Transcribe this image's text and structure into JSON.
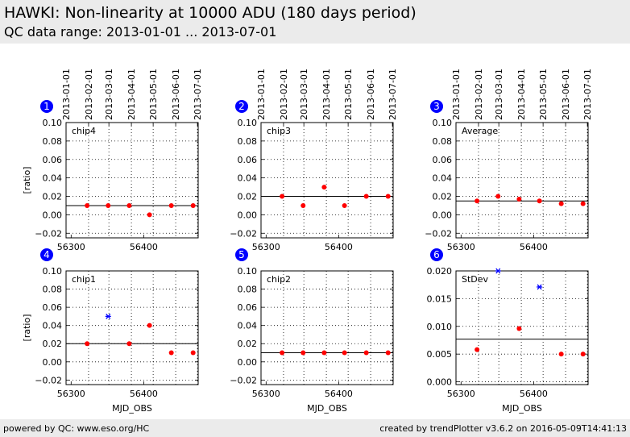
{
  "header": {
    "title": "HAWKI: Non-linearity at 10000 ADU (180 days period)",
    "subtitle": "QC data range: 2013-01-01 ... 2013-07-01"
  },
  "footer": {
    "left": "powered by QC: www.eso.org/HC",
    "right": "created by trendPlotter v3.6.2 on 2016-05-09T14:41:13"
  },
  "colors": {
    "point": "#ff0000",
    "outlier": "#0000ff",
    "badge": "#0000ff",
    "header_bg": "#ebebeb"
  },
  "chart_data": [
    {
      "type": "scatter",
      "panel_number": "1",
      "label": "chip4",
      "ylabel": "[ratio]",
      "xlabel": "",
      "xlim": [
        56293,
        56475
      ],
      "ylim": [
        -0.025,
        0.1
      ],
      "yticks": [
        -0.02,
        0.0,
        0.02,
        0.04,
        0.06,
        0.08,
        0.1
      ],
      "ytick_labels": [
        "−0.02",
        "0.00",
        "0.02",
        "0.04",
        "0.06",
        "0.08",
        "0.10"
      ],
      "xticks": [
        56300,
        56400
      ],
      "xtick_labels": [
        "56300",
        "56400"
      ],
      "date_ticks": [
        "2013-01-01",
        "2013-02-01",
        "2013-03-01",
        "2013-04-01",
        "2013-05-01",
        "2013-06-01",
        "2013-07-01"
      ],
      "date_tick_mjd": [
        56293,
        56324,
        56352,
        56383,
        56413,
        56444,
        56474
      ],
      "refline": 0.01,
      "points": [
        {
          "x": 56322,
          "y": 0.01
        },
        {
          "x": 56351,
          "y": 0.01
        },
        {
          "x": 56380,
          "y": 0.01
        },
        {
          "x": 56408,
          "y": 0.0
        },
        {
          "x": 56438,
          "y": 0.01
        },
        {
          "x": 56468,
          "y": 0.01
        }
      ],
      "outliers": []
    },
    {
      "type": "scatter",
      "panel_number": "2",
      "label": "chip3",
      "ylabel": "",
      "xlabel": "",
      "xlim": [
        56293,
        56475
      ],
      "ylim": [
        -0.025,
        0.1
      ],
      "yticks": [
        -0.02,
        0.0,
        0.02,
        0.04,
        0.06,
        0.08,
        0.1
      ],
      "ytick_labels": [
        "−0.02",
        "0.00",
        "0.02",
        "0.04",
        "0.06",
        "0.08",
        "0.10"
      ],
      "xticks": [
        56300,
        56400
      ],
      "xtick_labels": [
        "56300",
        "56400"
      ],
      "date_ticks": [
        "2013-01-01",
        "2013-02-01",
        "2013-03-01",
        "2013-04-01",
        "2013-05-01",
        "2013-06-01",
        "2013-07-01"
      ],
      "date_tick_mjd": [
        56293,
        56324,
        56352,
        56383,
        56413,
        56444,
        56474
      ],
      "refline": 0.02,
      "points": [
        {
          "x": 56322,
          "y": 0.02
        },
        {
          "x": 56351,
          "y": 0.01
        },
        {
          "x": 56380,
          "y": 0.03
        },
        {
          "x": 56408,
          "y": 0.01
        },
        {
          "x": 56438,
          "y": 0.02
        },
        {
          "x": 56468,
          "y": 0.02
        }
      ],
      "outliers": []
    },
    {
      "type": "scatter",
      "panel_number": "3",
      "label": "Average",
      "ylabel": "",
      "xlabel": "",
      "xlim": [
        56293,
        56475
      ],
      "ylim": [
        -0.025,
        0.1
      ],
      "yticks": [
        -0.02,
        0.0,
        0.02,
        0.04,
        0.06,
        0.08,
        0.1
      ],
      "ytick_labels": [
        "−0.02",
        "0.00",
        "0.02",
        "0.04",
        "0.06",
        "0.08",
        "0.10"
      ],
      "xticks": [
        56300,
        56400
      ],
      "xtick_labels": [
        "56300",
        "56400"
      ],
      "date_ticks": [
        "2013-01-01",
        "2013-02-01",
        "2013-03-01",
        "2013-04-01",
        "2013-05-01",
        "2013-06-01",
        "2013-07-01"
      ],
      "date_tick_mjd": [
        56293,
        56324,
        56352,
        56383,
        56413,
        56444,
        56474
      ],
      "refline": 0.015,
      "points": [
        {
          "x": 56322,
          "y": 0.015
        },
        {
          "x": 56351,
          "y": 0.02
        },
        {
          "x": 56380,
          "y": 0.017
        },
        {
          "x": 56408,
          "y": 0.015
        },
        {
          "x": 56438,
          "y": 0.012
        },
        {
          "x": 56468,
          "y": 0.012
        }
      ],
      "outliers": []
    },
    {
      "type": "scatter",
      "panel_number": "4",
      "label": "chip1",
      "ylabel": "[ratio]",
      "xlabel": "MJD_OBS",
      "xlim": [
        56293,
        56475
      ],
      "ylim": [
        -0.025,
        0.1
      ],
      "yticks": [
        -0.02,
        0.0,
        0.02,
        0.04,
        0.06,
        0.08,
        0.1
      ],
      "ytick_labels": [
        "−0.02",
        "0.00",
        "0.02",
        "0.04",
        "0.06",
        "0.08",
        "0.10"
      ],
      "xticks": [
        56300,
        56400
      ],
      "xtick_labels": [
        "56300",
        "56400"
      ],
      "date_ticks": [],
      "date_tick_mjd": [],
      "refline": 0.02,
      "points": [
        {
          "x": 56322,
          "y": 0.02
        },
        {
          "x": 56380,
          "y": 0.02
        },
        {
          "x": 56408,
          "y": 0.04
        },
        {
          "x": 56438,
          "y": 0.01
        },
        {
          "x": 56468,
          "y": 0.01
        }
      ],
      "outliers": [
        {
          "x": 56351,
          "y": 0.05
        }
      ]
    },
    {
      "type": "scatter",
      "panel_number": "5",
      "label": "chip2",
      "ylabel": "",
      "xlabel": "MJD_OBS",
      "xlim": [
        56293,
        56475
      ],
      "ylim": [
        -0.025,
        0.1
      ],
      "yticks": [
        -0.02,
        0.0,
        0.02,
        0.04,
        0.06,
        0.08,
        0.1
      ],
      "ytick_labels": [
        "−0.02",
        "0.00",
        "0.02",
        "0.04",
        "0.06",
        "0.08",
        "0.10"
      ],
      "xticks": [
        56300,
        56400
      ],
      "xtick_labels": [
        "56300",
        "56400"
      ],
      "date_ticks": [],
      "date_tick_mjd": [],
      "refline": 0.01,
      "points": [
        {
          "x": 56322,
          "y": 0.01
        },
        {
          "x": 56351,
          "y": 0.01
        },
        {
          "x": 56380,
          "y": 0.01
        },
        {
          "x": 56408,
          "y": 0.01
        },
        {
          "x": 56438,
          "y": 0.01
        },
        {
          "x": 56468,
          "y": 0.01
        }
      ],
      "outliers": []
    },
    {
      "type": "scatter",
      "panel_number": "6",
      "label": "StDev",
      "ylabel": "",
      "xlabel": "MJD_OBS",
      "xlim": [
        56293,
        56475
      ],
      "ylim": [
        -0.0005,
        0.02
      ],
      "yticks": [
        0.0,
        0.005,
        0.01,
        0.015,
        0.02
      ],
      "ytick_labels": [
        "0.000",
        "0.005",
        "0.010",
        "0.015",
        "0.020"
      ],
      "xticks": [
        56300,
        56400
      ],
      "xtick_labels": [
        "56300",
        "56400"
      ],
      "date_ticks": [],
      "date_tick_mjd": [],
      "refline": 0.0077,
      "points": [
        {
          "x": 56322,
          "y": 0.0058
        },
        {
          "x": 56380,
          "y": 0.0096
        },
        {
          "x": 56438,
          "y": 0.005
        },
        {
          "x": 56468,
          "y": 0.005
        }
      ],
      "outliers": [
        {
          "x": 56351,
          "y": 0.02
        },
        {
          "x": 56408,
          "y": 0.0171
        }
      ]
    }
  ]
}
